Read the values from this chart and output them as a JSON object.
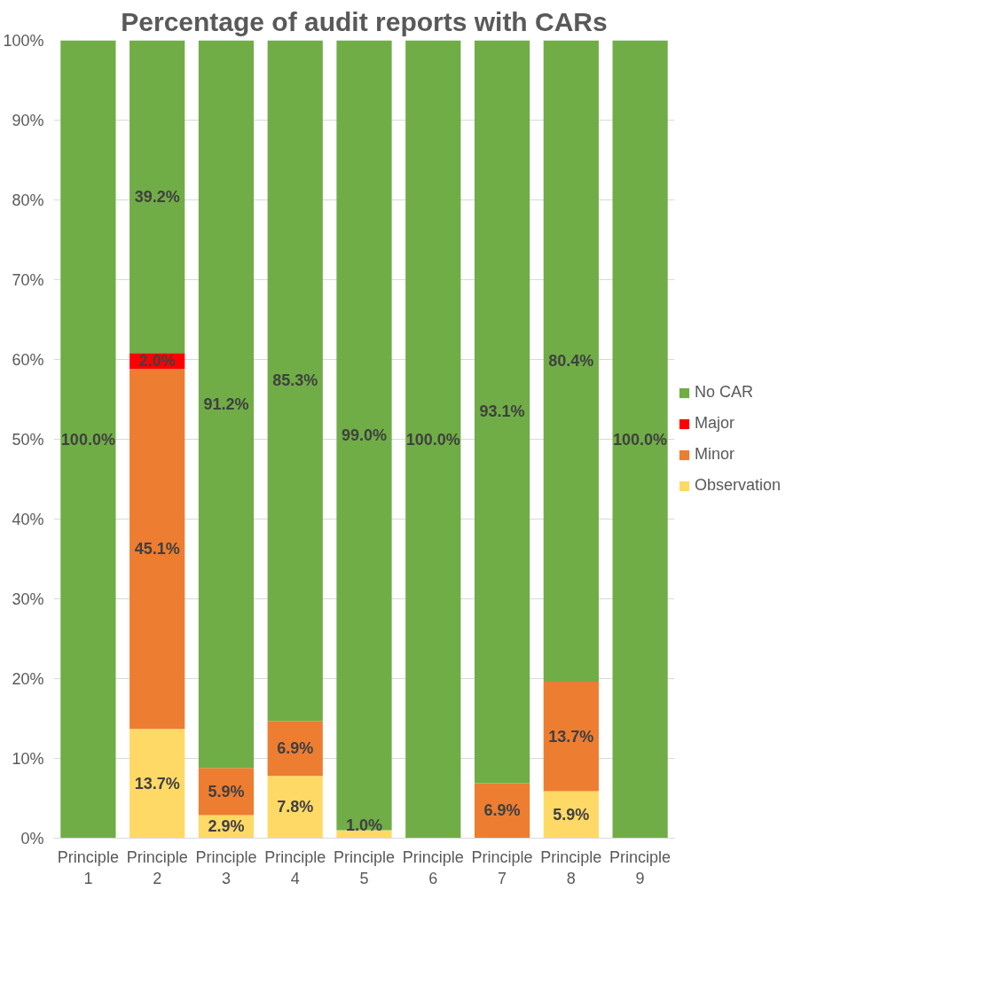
{
  "chart_data": {
    "type": "bar",
    "title": "Percentage of audit reports with CARs",
    "stacked": true,
    "categories": [
      "Principle 1",
      "Principle 2",
      "Principle 3",
      "Principle 4",
      "Principle 5",
      "Principle 6",
      "Principle 7",
      "Principle 8",
      "Principle 9"
    ],
    "series": [
      {
        "name": "Observation",
        "color": "#ffd966",
        "values": [
          0,
          13.7,
          2.9,
          7.8,
          1.0,
          0,
          0,
          5.9,
          0
        ],
        "value_labels": [
          null,
          "13.7%",
          "2.9%",
          "7.8%",
          "1.0%",
          null,
          null,
          "5.9%",
          null
        ]
      },
      {
        "name": "Minor",
        "color": "#ed7d31",
        "values": [
          0,
          45.1,
          5.9,
          6.9,
          0,
          0,
          6.9,
          13.7,
          0
        ],
        "value_labels": [
          null,
          "45.1%",
          "5.9%",
          "6.9%",
          null,
          null,
          "6.9%",
          "13.7%",
          null
        ]
      },
      {
        "name": "Major",
        "color": "#ff0000",
        "values": [
          0,
          2.0,
          0,
          0,
          0,
          0,
          0,
          0,
          0
        ],
        "value_labels": [
          null,
          "2.0%",
          null,
          null,
          null,
          null,
          null,
          null,
          null
        ]
      },
      {
        "name": "No CAR",
        "color": "#70ad47",
        "values": [
          100,
          39.2,
          91.2,
          85.3,
          99.0,
          100,
          93.1,
          80.4,
          100
        ],
        "value_labels": [
          "100.0%",
          "39.2%",
          "91.2%",
          "85.3%",
          "99.0%",
          "100.0%",
          "93.1%",
          "80.4%",
          "100.0%"
        ]
      }
    ],
    "ylim": [
      0,
      100
    ],
    "yticks": [
      {
        "value": 0,
        "label": "0%"
      },
      {
        "value": 10,
        "label": "10%"
      },
      {
        "value": 20,
        "label": "20%"
      },
      {
        "value": 30,
        "label": "30%"
      },
      {
        "value": 40,
        "label": "40%"
      },
      {
        "value": 50,
        "label": "50%"
      },
      {
        "value": 60,
        "label": "60%"
      },
      {
        "value": 70,
        "label": "70%"
      },
      {
        "value": 80,
        "label": "80%"
      },
      {
        "value": 90,
        "label": "90%"
      },
      {
        "value": 100,
        "label": "100%"
      }
    ],
    "grid": "y",
    "legend": "right"
  }
}
